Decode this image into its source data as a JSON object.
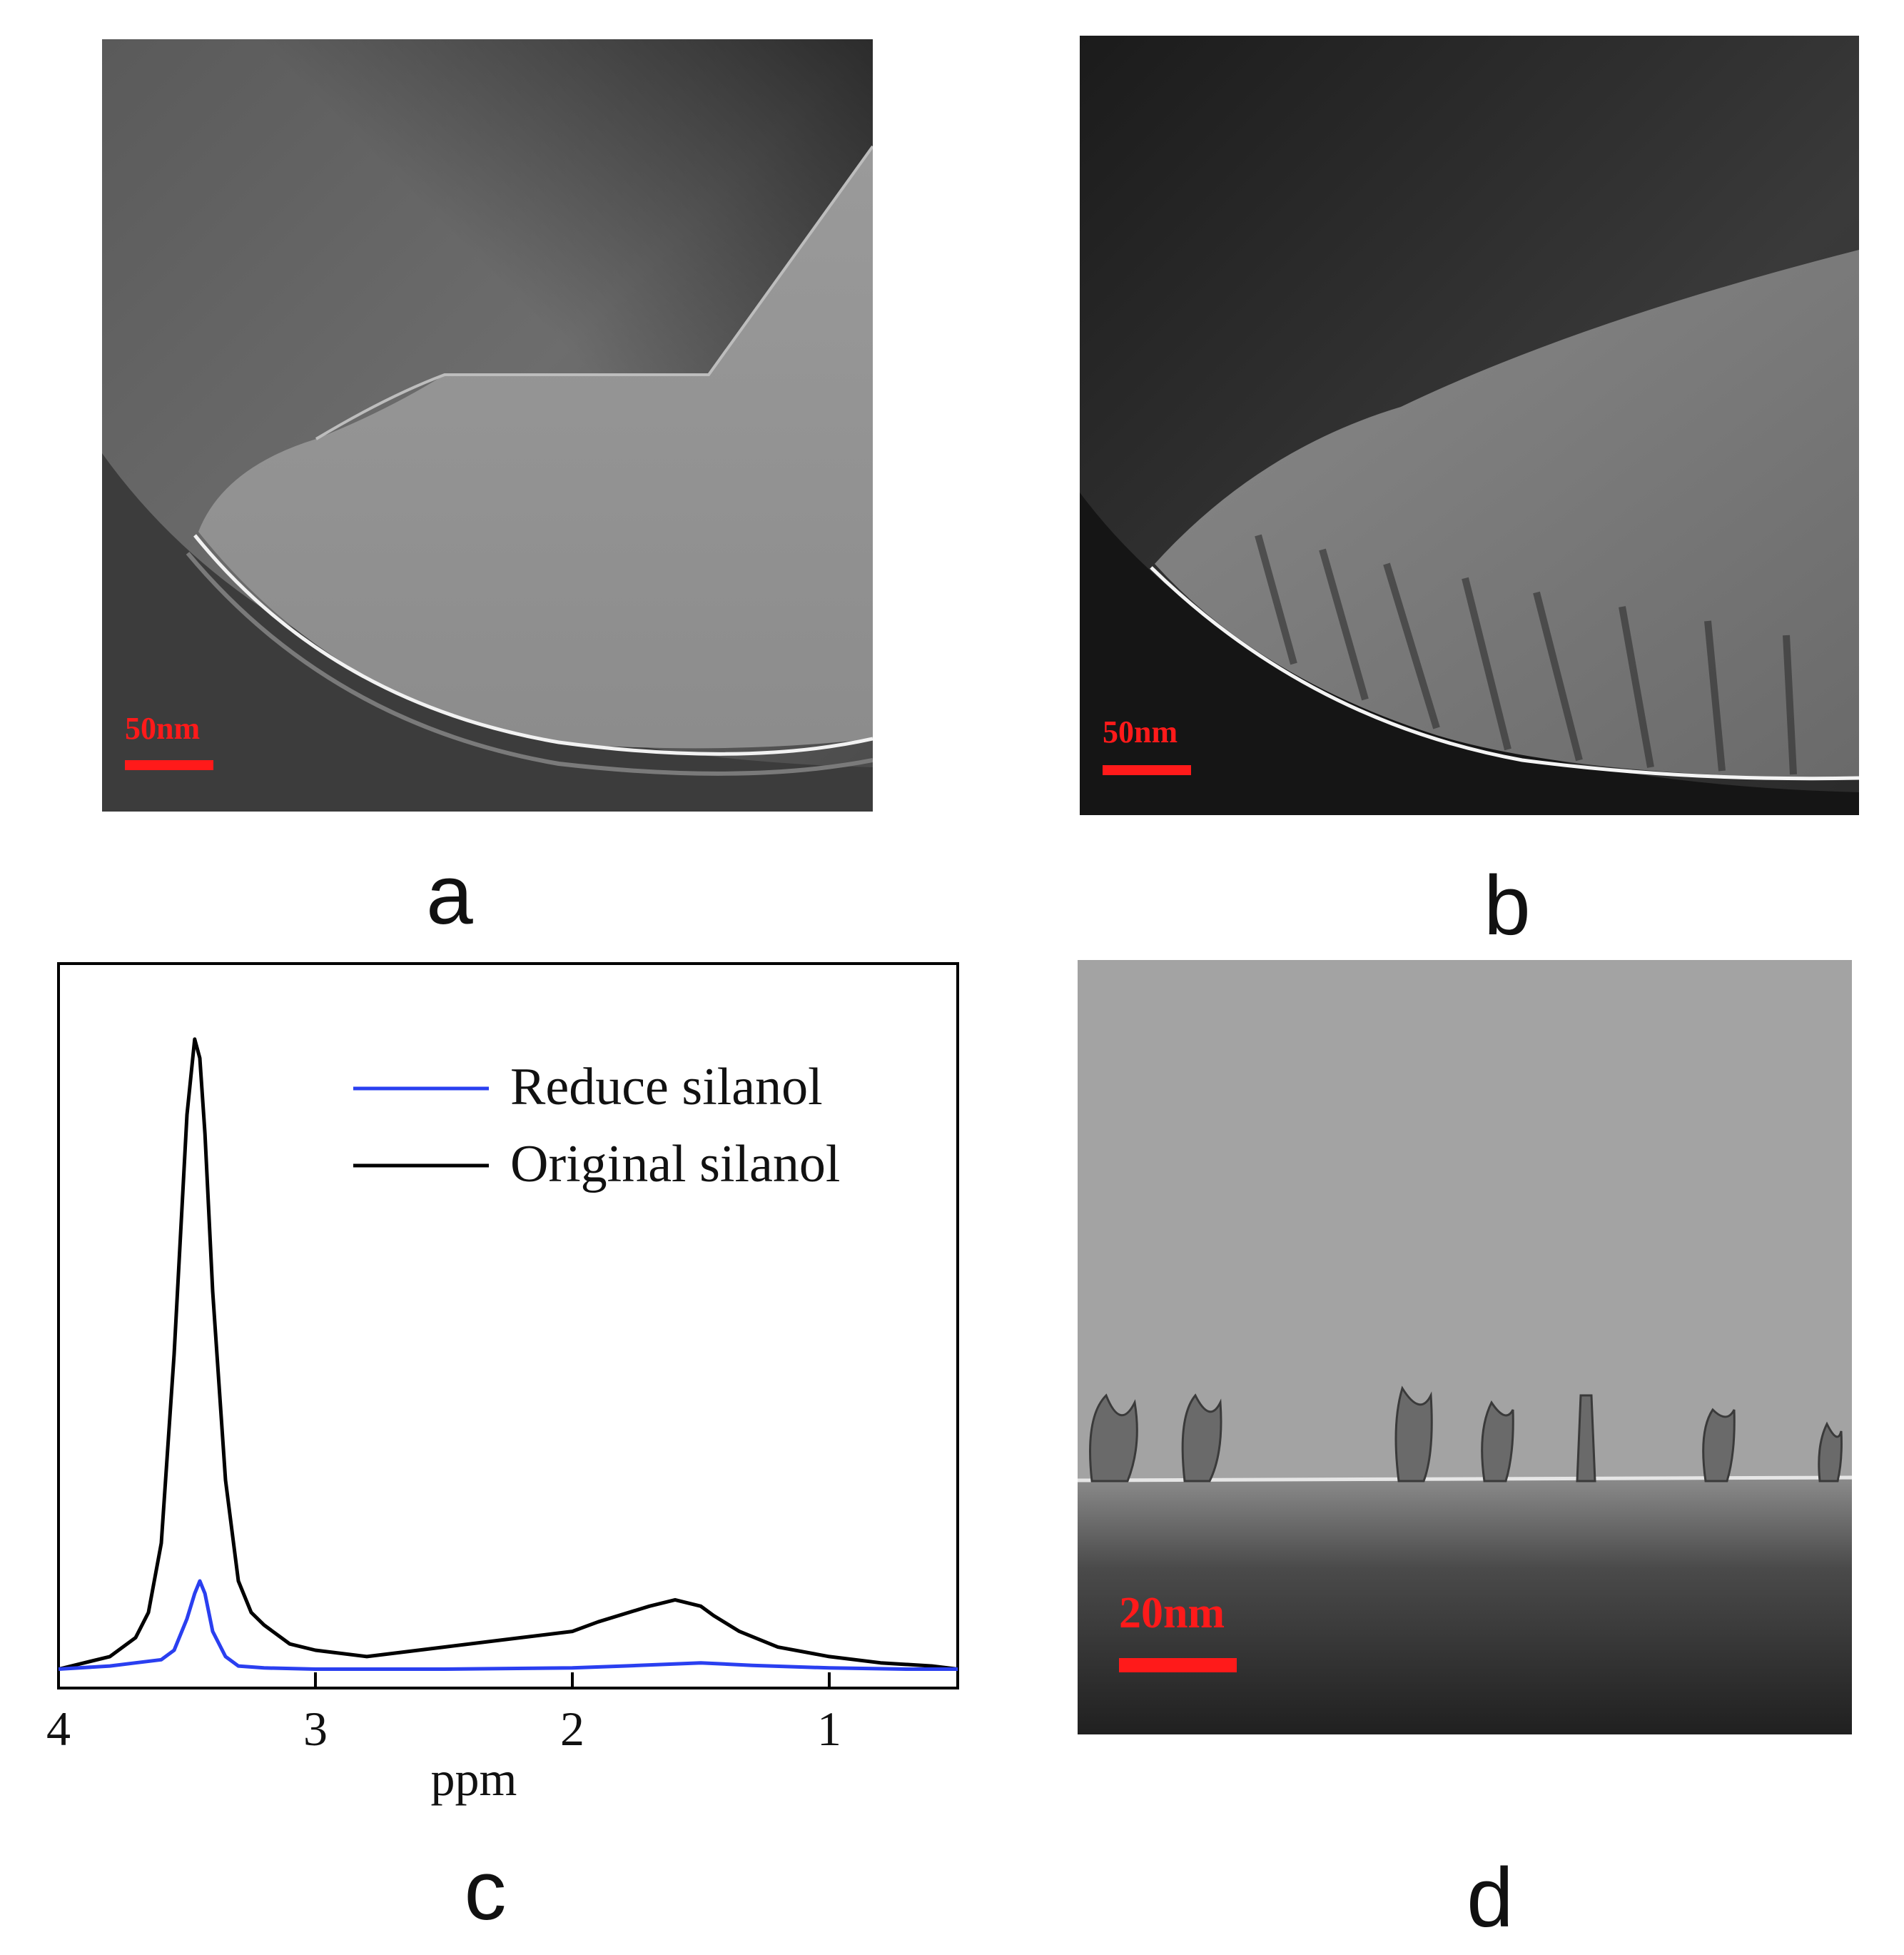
{
  "figure": {
    "panels": [
      {
        "id": "a",
        "label": "a",
        "scale_bar": "50nm"
      },
      {
        "id": "b",
        "label": "b",
        "scale_bar": "50nm"
      },
      {
        "id": "c",
        "label": "c"
      },
      {
        "id": "d",
        "label": "d",
        "scale_bar": "20nm"
      }
    ]
  },
  "colors": {
    "scale_bar": "#ff1a1a",
    "reduce_series": "#2a3ff0",
    "original_series": "#000000"
  },
  "chart_data": {
    "type": "line",
    "title": "",
    "xlabel": "ppm",
    "ylabel": "",
    "xlim": [
      4,
      0.5
    ],
    "x_reversed": true,
    "xticks": [
      4,
      3,
      2,
      1
    ],
    "yticks": [],
    "ylim": [
      -0.03,
      1.12
    ],
    "legend_position": "top-right",
    "grid": false,
    "series": [
      {
        "name": "Reduce silanol",
        "color": "#2a3ff0",
        "x": [
          4.0,
          3.8,
          3.7,
          3.6,
          3.55,
          3.5,
          3.47,
          3.45,
          3.43,
          3.4,
          3.35,
          3.3,
          3.2,
          3.0,
          2.5,
          2.0,
          1.8,
          1.5,
          1.3,
          1.0,
          0.7,
          0.5
        ],
        "y": [
          0.0,
          0.005,
          0.01,
          0.015,
          0.03,
          0.08,
          0.12,
          0.14,
          0.12,
          0.06,
          0.02,
          0.005,
          0.002,
          0.0,
          0.0,
          0.002,
          0.005,
          0.01,
          0.006,
          0.002,
          0.0,
          0.0
        ]
      },
      {
        "name": "Original silanol",
        "color": "#000000",
        "x": [
          4.0,
          3.8,
          3.7,
          3.65,
          3.6,
          3.55,
          3.5,
          3.47,
          3.45,
          3.43,
          3.4,
          3.35,
          3.3,
          3.25,
          3.2,
          3.1,
          3.0,
          2.8,
          2.5,
          2.2,
          2.0,
          1.9,
          1.7,
          1.6,
          1.5,
          1.45,
          1.35,
          1.2,
          1.0,
          0.8,
          0.6,
          0.5
        ],
        "y": [
          0.0,
          0.02,
          0.05,
          0.09,
          0.2,
          0.5,
          0.88,
          1.0,
          0.97,
          0.85,
          0.6,
          0.3,
          0.14,
          0.09,
          0.07,
          0.04,
          0.03,
          0.02,
          0.035,
          0.05,
          0.06,
          0.075,
          0.1,
          0.11,
          0.1,
          0.085,
          0.06,
          0.035,
          0.02,
          0.01,
          0.005,
          0.0
        ]
      }
    ]
  }
}
